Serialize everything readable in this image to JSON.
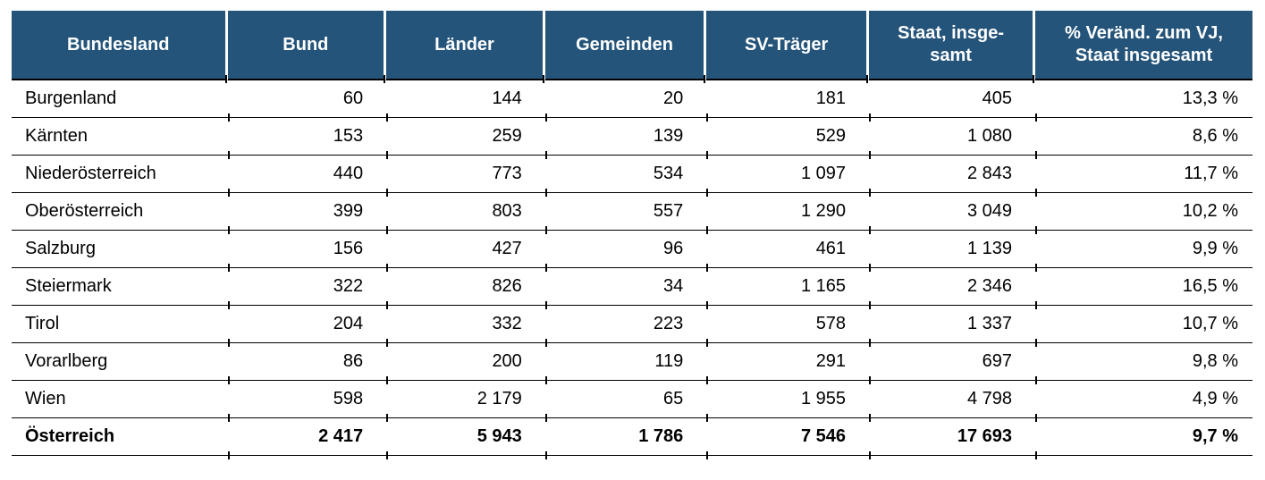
{
  "colors": {
    "header_bg": "#24547A",
    "header_text": "#FFFFFF",
    "body_text": "#000000",
    "grid_line": "#000000"
  },
  "table": {
    "columns": [
      {
        "label": "Bundesland"
      },
      {
        "label": "Bund"
      },
      {
        "label": "Länder"
      },
      {
        "label": "Gemeinden"
      },
      {
        "label": "SV-Träger"
      },
      {
        "label": "Staat, insge-\nsamt"
      },
      {
        "label": "% Veränd. zum VJ,\nStaat insgesamt"
      }
    ],
    "rows": [
      {
        "cells": [
          "Burgenland",
          "60",
          "144",
          "20",
          "181",
          "405",
          "13,3 %"
        ]
      },
      {
        "cells": [
          "Kärnten",
          "153",
          "259",
          "139",
          "529",
          "1 080",
          "8,6 %"
        ]
      },
      {
        "cells": [
          "Niederösterreich",
          "440",
          "773",
          "534",
          "1 097",
          "2 843",
          "11,7 %"
        ]
      },
      {
        "cells": [
          "Oberösterreich",
          "399",
          "803",
          "557",
          "1 290",
          "3 049",
          "10,2 %"
        ]
      },
      {
        "cells": [
          "Salzburg",
          "156",
          "427",
          "96",
          "461",
          "1 139",
          "9,9 %"
        ]
      },
      {
        "cells": [
          "Steiermark",
          "322",
          "826",
          "34",
          "1 165",
          "2 346",
          "16,5 %"
        ]
      },
      {
        "cells": [
          "Tirol",
          "204",
          "332",
          "223",
          "578",
          "1 337",
          "10,7 %"
        ]
      },
      {
        "cells": [
          "Vorarlberg",
          "86",
          "200",
          "119",
          "291",
          "697",
          "9,8 %"
        ]
      },
      {
        "cells": [
          "Wien",
          "598",
          "2 179",
          "65",
          "1 955",
          "4 798",
          "4,9 %"
        ]
      }
    ],
    "total_row": {
      "cells": [
        "Österreich",
        "2 417",
        "5 943",
        "1 786",
        "7 546",
        "17 693",
        "9,7 %"
      ]
    }
  },
  "chart_data": {
    "type": "table",
    "columns": [
      "Bundesland",
      "Bund",
      "Länder",
      "Gemeinden",
      "SV-Träger",
      "Staat, insgesamt",
      "% Veränd. zum VJ, Staat insgesamt"
    ],
    "rows": [
      [
        "Burgenland",
        60,
        144,
        20,
        181,
        405,
        "13,3 %"
      ],
      [
        "Kärnten",
        153,
        259,
        139,
        529,
        1080,
        "8,6 %"
      ],
      [
        "Niederösterreich",
        440,
        773,
        534,
        1097,
        2843,
        "11,7 %"
      ],
      [
        "Oberösterreich",
        399,
        803,
        557,
        1290,
        3049,
        "10,2 %"
      ],
      [
        "Salzburg",
        156,
        427,
        96,
        461,
        1139,
        "9,9 %"
      ],
      [
        "Steiermark",
        322,
        826,
        34,
        1165,
        2346,
        "16,5 %"
      ],
      [
        "Tirol",
        204,
        332,
        223,
        578,
        1337,
        "10,7 %"
      ],
      [
        "Vorarlberg",
        86,
        200,
        119,
        291,
        697,
        "9,8 %"
      ],
      [
        "Wien",
        598,
        2179,
        65,
        1955,
        4798,
        "4,9 %"
      ],
      [
        "Österreich",
        2417,
        5943,
        1786,
        7546,
        17693,
        "9,7 %"
      ]
    ],
    "layout": {
      "header_position": "top",
      "total_row": "Österreich",
      "grid": "horizontal-lines"
    }
  }
}
